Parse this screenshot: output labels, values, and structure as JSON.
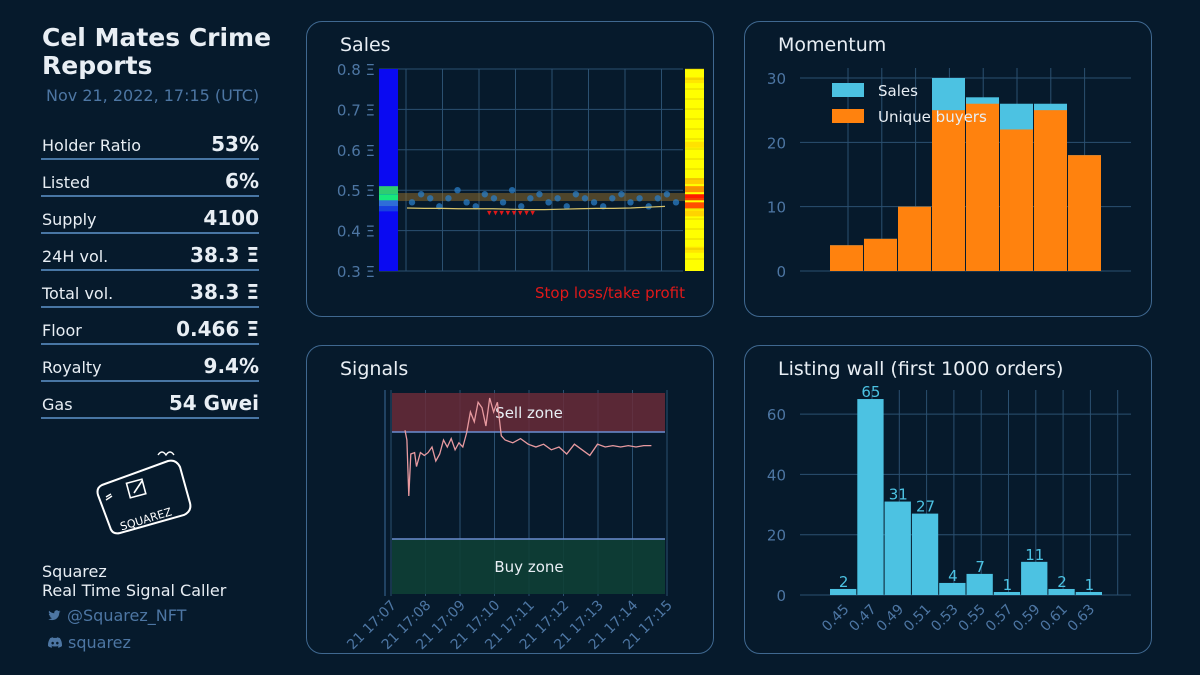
{
  "header": {
    "title": "Cel Mates Crime Reports",
    "date": "Nov 21, 2022, 17:15 (UTC)"
  },
  "stats": [
    {
      "label": "Holder Ratio",
      "value": "53%"
    },
    {
      "label": "Listed",
      "value": "6%"
    },
    {
      "label": "Supply",
      "value": "4100"
    },
    {
      "label": "24H vol.",
      "value": "38.3 Ξ"
    },
    {
      "label": "Total vol.",
      "value": "38.3 Ξ"
    },
    {
      "label": "Floor",
      "value": "0.466 Ξ"
    },
    {
      "label": "Royalty",
      "value": "9.4%"
    },
    {
      "label": "Gas",
      "value": "54 Gwei"
    }
  ],
  "author": {
    "name": "Squarez",
    "role": "Real Time Signal Caller",
    "twitter": "@Squarez_NFT",
    "discord": "squarez",
    "logo_text": "SQUAREZ",
    "twitter_icon": "twitter-icon",
    "discord_icon": "discord-icon"
  },
  "colors": {
    "background": "#061a2c",
    "panel_border": "#3f6890",
    "grid": "#2b5070",
    "tick": "#4d76a3",
    "sales": "#4cc2e2",
    "unique_buyers": "#ff820e",
    "stop_loss": "#e0191a",
    "sell_zone": "#6a2b38",
    "buy_zone": "#0e3f35"
  },
  "panels": {
    "sales": {
      "title": "Sales",
      "stop_loss_label": "Stop loss/take profit"
    },
    "momentum": {
      "title": "Momentum"
    },
    "signals": {
      "title": "Signals",
      "sell_zone_label": "Sell zone",
      "buy_zone_label": "Buy zone"
    },
    "listing": {
      "title": "Listing wall (first 1000 orders)"
    }
  },
  "chart_data": [
    {
      "type": "scatter",
      "title": "Sales",
      "ylabel": "",
      "ylim": [
        0.3,
        0.8
      ],
      "y_ticks": [
        "0.3 Ξ",
        "0.4 Ξ",
        "0.5 Ξ",
        "0.6 Ξ",
        "0.7 Ξ",
        "0.8 Ξ"
      ],
      "series": [
        {
          "name": "sales",
          "values": [
            0.47,
            0.49,
            0.48,
            0.46,
            0.48,
            0.5,
            0.47,
            0.46,
            0.49,
            0.48,
            0.47,
            0.5,
            0.46,
            0.48,
            0.49,
            0.47,
            0.48,
            0.46,
            0.49,
            0.48,
            0.47,
            0.46,
            0.48,
            0.49,
            0.47,
            0.48,
            0.46,
            0.48,
            0.49,
            0.47
          ]
        },
        {
          "name": "moving_average",
          "values": [
            0.456,
            0.455,
            0.455,
            0.454,
            0.454,
            0.454,
            0.453,
            0.452,
            0.452,
            0.453,
            0.454,
            0.455,
            0.455,
            0.456,
            0.458,
            0.46
          ]
        }
      ],
      "annotation": "Stop loss/take profit"
    },
    {
      "type": "bar",
      "title": "Momentum",
      "ylim": [
        0,
        30
      ],
      "y_ticks": [
        0,
        10,
        20,
        30
      ],
      "series": [
        {
          "name": "Sales",
          "values": [
            4,
            5,
            10,
            30,
            27,
            26,
            26,
            18
          ]
        },
        {
          "name": "Unique buyers",
          "values": [
            4,
            5,
            10,
            25,
            26,
            22,
            25,
            18
          ]
        }
      ],
      "legend": "top-left"
    },
    {
      "type": "line",
      "title": "Signals",
      "x_ticks": [
        "21 17:07",
        "21 17:08",
        "21 17:09",
        "21 17:10",
        "21 17:11",
        "21 17:12",
        "21 17:13",
        "21 17:14",
        "21 17:15"
      ],
      "series": [
        {
          "name": "signal",
          "values": [
            [
              0.0,
              62
            ],
            [
              0.05,
              55
            ],
            [
              0.1,
              15
            ],
            [
              0.15,
              45
            ],
            [
              0.25,
              46
            ],
            [
              0.3,
              36
            ],
            [
              0.4,
              46
            ],
            [
              0.5,
              44
            ],
            [
              0.6,
              46
            ],
            [
              0.7,
              50
            ],
            [
              0.8,
              40
            ],
            [
              0.9,
              45
            ],
            [
              1.0,
              55
            ],
            [
              1.1,
              50
            ],
            [
              1.2,
              56
            ],
            [
              1.3,
              48
            ],
            [
              1.4,
              53
            ],
            [
              1.5,
              50
            ],
            [
              1.6,
              60
            ],
            [
              1.7,
              75
            ],
            [
              1.8,
              68
            ],
            [
              1.9,
              82
            ],
            [
              2.0,
              78
            ],
            [
              2.1,
              65
            ],
            [
              2.2,
              85
            ],
            [
              2.3,
              75
            ],
            [
              2.4,
              82
            ],
            [
              2.5,
              58
            ],
            [
              2.6,
              55
            ],
            [
              2.8,
              53
            ],
            [
              3.0,
              56
            ],
            [
              3.2,
              52
            ],
            [
              3.4,
              50
            ],
            [
              3.6,
              52
            ],
            [
              3.8,
              48
            ],
            [
              4.0,
              50
            ],
            [
              4.2,
              45
            ],
            [
              4.4,
              52
            ],
            [
              4.6,
              48
            ],
            [
              4.8,
              44
            ],
            [
              5.0,
              52
            ],
            [
              5.2,
              50
            ],
            [
              5.4,
              51
            ],
            [
              5.6,
              50
            ],
            [
              5.8,
              51
            ],
            [
              6.0,
              50
            ],
            [
              6.2,
              51
            ],
            [
              6.4,
              51
            ]
          ]
        }
      ],
      "zones": {
        "sell": "Sell zone",
        "buy": "Buy zone"
      }
    },
    {
      "type": "bar",
      "title": "Listing wall (first 1000 orders)",
      "categories": [
        "0.45",
        "0.47",
        "0.49",
        "0.51",
        "0.53",
        "0.55",
        "0.57",
        "0.59",
        "0.61",
        "0.63"
      ],
      "values": [
        2,
        65,
        31,
        27,
        4,
        7,
        1,
        11,
        2,
        1
      ],
      "ylim": [
        0,
        68
      ],
      "y_ticks": [
        0,
        20,
        40,
        60
      ]
    }
  ]
}
